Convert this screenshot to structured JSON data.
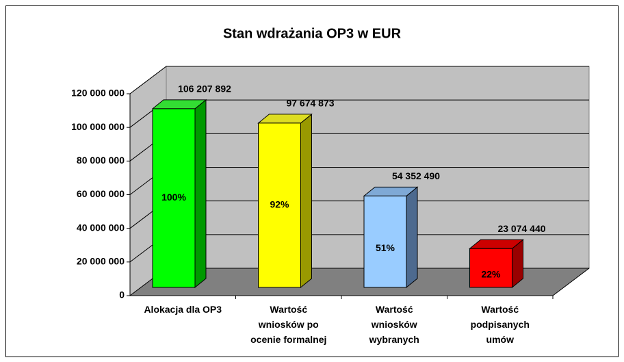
{
  "chart_data": {
    "type": "bar3d",
    "title": "Stan wdrażania OP3 w EUR",
    "categories": [
      "Alokacja dla OP3",
      "Wartość\nwniosków po\nocenie formalnej",
      "Wartość\nwniosków\nwybranych",
      "Wartość\npodpisanych\numów"
    ],
    "values": [
      106207892,
      97674873,
      54352490,
      23074440
    ],
    "value_labels": [
      "106 207 892",
      "97 674 873",
      "54 352 490",
      "23 074 440"
    ],
    "percent_labels": [
      "100%",
      "92%",
      "51%",
      "22%"
    ],
    "colors": [
      "#00ff00",
      "#ffff00",
      "#99ccff",
      "#ff0000"
    ],
    "side_colors": [
      "#009900",
      "#999900",
      "#4d6a8f",
      "#990000"
    ],
    "top_colors": [
      "#33dd33",
      "#dddd22",
      "#7fa9d6",
      "#cc0000"
    ],
    "ylim": [
      0,
      120000000
    ],
    "yticks": [
      0,
      {
        "value": 20000000,
        "label": "20 000 000"
      },
      {
        "value": 40000000,
        "label": "40 000 000"
      },
      {
        "value": 60000000,
        "label": "60 000 000"
      },
      {
        "value": 80000000,
        "label": "80 000 000"
      },
      {
        "value": 100000000,
        "label": "100 000 000"
      },
      {
        "value": 120000000,
        "label": "120 000 000"
      }
    ],
    "grid": true
  }
}
